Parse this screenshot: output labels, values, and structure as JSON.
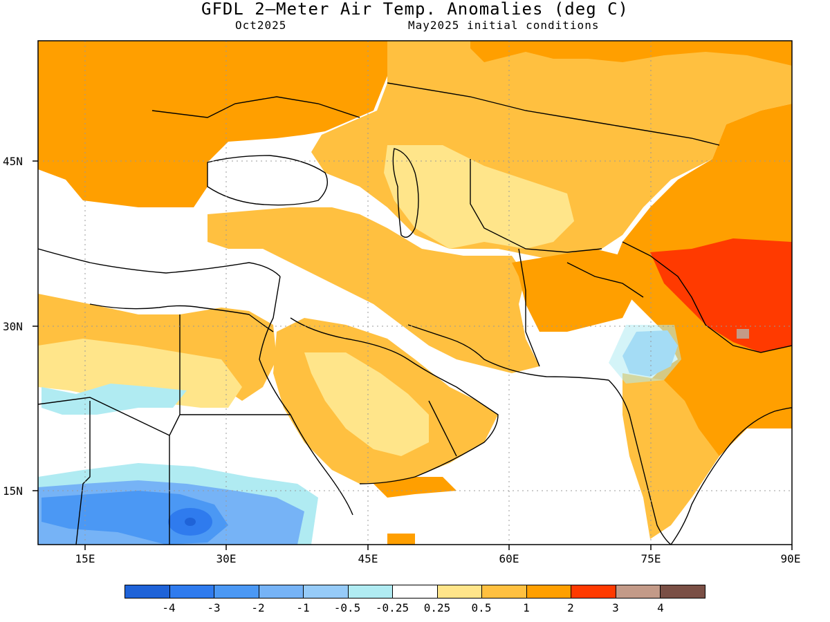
{
  "header": {
    "title": "GFDL 2—Meter Air Temp. Anomalies (deg C)",
    "valid_month": "Oct2025",
    "initial_conditions": "May2025 initial conditions"
  },
  "map": {
    "lon_range": [
      10,
      90
    ],
    "lat_range": [
      9.5,
      56
    ],
    "x_ticks": [
      "15E",
      "30E",
      "45E",
      "60E",
      "75E",
      "90E"
    ],
    "y_ticks": [
      "45N",
      "30N",
      "15N"
    ],
    "grid": "dotted"
  },
  "legend": {
    "levels": [
      "-4",
      "-3",
      "-2",
      "-1",
      "-0.5",
      "-0.25",
      "0.25",
      "0.5",
      "1",
      "2",
      "3",
      "4"
    ],
    "colors": [
      "#1f63d8",
      "#2f7bee",
      "#4b98f4",
      "#76b3f6",
      "#96cbf8",
      "#b0ebf2",
      "#ffffff",
      "#ffe58a",
      "#ffc040",
      "#ff9f00",
      "#ff3a00",
      "#c39a88",
      "#7a4f45"
    ]
  }
}
